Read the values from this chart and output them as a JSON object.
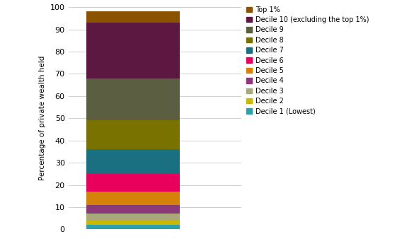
{
  "segments": [
    {
      "label": "Decile 1 (Lowest)",
      "value": 2.0,
      "color": "#2EA0AC"
    },
    {
      "label": "Decile 2",
      "value": 2.0,
      "color": "#C8B800"
    },
    {
      "label": "Decile 3",
      "value": 3.0,
      "color": "#A8A87A"
    },
    {
      "label": "Decile 4",
      "value": 4.0,
      "color": "#8B3A78"
    },
    {
      "label": "Decile 5",
      "value": 6.0,
      "color": "#D4820A"
    },
    {
      "label": "Decile 6",
      "value": 8.0,
      "color": "#E8005C"
    },
    {
      "label": "Decile 7",
      "value": 11.0,
      "color": "#1A7080"
    },
    {
      "label": "Decile 8",
      "value": 13.0,
      "color": "#7A7200"
    },
    {
      "label": "Decile 9",
      "value": 19.0,
      "color": "#5C5E42"
    },
    {
      "label": "Decile 10 (excluding the top 1%)",
      "value": 25.0,
      "color": "#5C1840"
    },
    {
      "label": "Top 1%",
      "value": 5.0,
      "color": "#8B5200"
    }
  ],
  "ylabel": "Percentage of private wealth held",
  "ylim": [
    0,
    100
  ],
  "yticks": [
    0,
    10,
    20,
    30,
    40,
    50,
    60,
    70,
    80,
    90,
    100
  ],
  "background_color": "#ffffff",
  "grid_color": "#d0d0d0",
  "figsize": [
    5.68,
    3.38
  ],
  "dpi": 100
}
